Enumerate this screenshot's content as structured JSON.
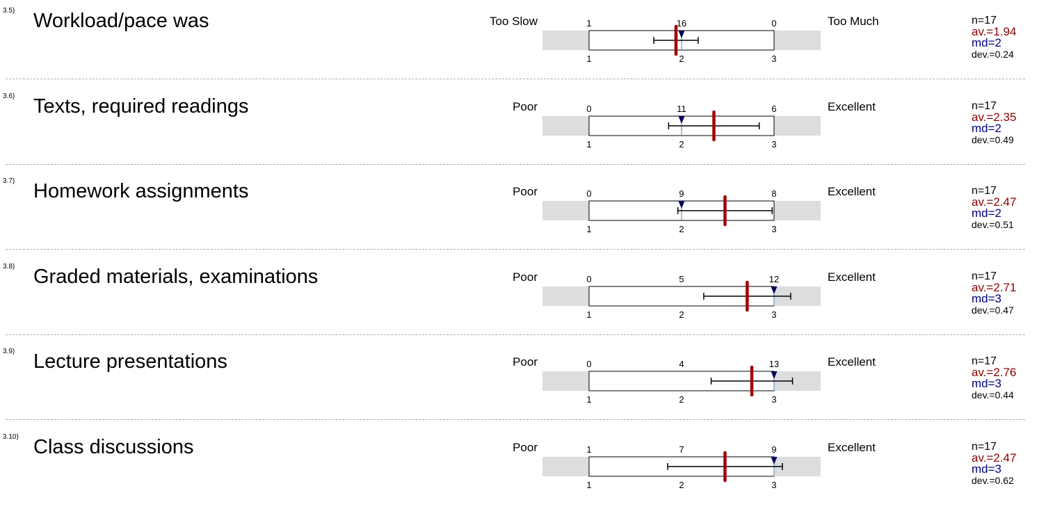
{
  "colors": {
    "band": "#dddddd",
    "mean": "#a00000",
    "median": "#00005e",
    "median_line": "#4f81bd",
    "separator": "#a9a9a9"
  },
  "chart_data": {
    "type": "scale",
    "scale_ticks": [
      "1",
      "2",
      "3"
    ],
    "xlim": [
      1,
      3
    ],
    "items": [
      {
        "number": "3.5)",
        "title": "Workload/pace was",
        "left_label": "Too Slow",
        "right_label": "Too Much",
        "counts": [
          "1",
          "16",
          "0"
        ],
        "n": "n=17",
        "av": "av.=1.94",
        "md": "md=2",
        "dev": "dev.=0.24",
        "mean": 1.94,
        "median": 2,
        "sd": 0.24
      },
      {
        "number": "3.6)",
        "title": "Texts, required readings",
        "left_label": "Poor",
        "right_label": "Excellent",
        "counts": [
          "0",
          "11",
          "6"
        ],
        "n": "n=17",
        "av": "av.=2.35",
        "md": "md=2",
        "dev": "dev.=0.49",
        "mean": 2.35,
        "median": 2,
        "sd": 0.49
      },
      {
        "number": "3.7)",
        "title": "Homework assignments",
        "left_label": "Poor",
        "right_label": "Excellent",
        "counts": [
          "0",
          "9",
          "8"
        ],
        "n": "n=17",
        "av": "av.=2.47",
        "md": "md=2",
        "dev": "dev.=0.51",
        "mean": 2.47,
        "median": 2,
        "sd": 0.51
      },
      {
        "number": "3.8)",
        "title": "Graded materials, examinations",
        "left_label": "Poor",
        "right_label": "Excellent",
        "counts": [
          "0",
          "5",
          "12"
        ],
        "n": "n=17",
        "av": "av.=2.71",
        "md": "md=3",
        "dev": "dev.=0.47",
        "mean": 2.71,
        "median": 3,
        "sd": 0.47
      },
      {
        "number": "3.9)",
        "title": "Lecture presentations",
        "left_label": "Poor",
        "right_label": "Excellent",
        "counts": [
          "0",
          "4",
          "13"
        ],
        "n": "n=17",
        "av": "av.=2.76",
        "md": "md=3",
        "dev": "dev.=0.44",
        "mean": 2.76,
        "median": 3,
        "sd": 0.44
      },
      {
        "number": "3.10)",
        "title": "Class discussions",
        "left_label": "Poor",
        "right_label": "Excellent",
        "counts": [
          "1",
          "7",
          "9"
        ],
        "n": "n=17",
        "av": "av.=2.47",
        "md": "md=3",
        "dev": "dev.=0.62",
        "mean": 2.47,
        "median": 3,
        "sd": 0.62
      }
    ]
  }
}
